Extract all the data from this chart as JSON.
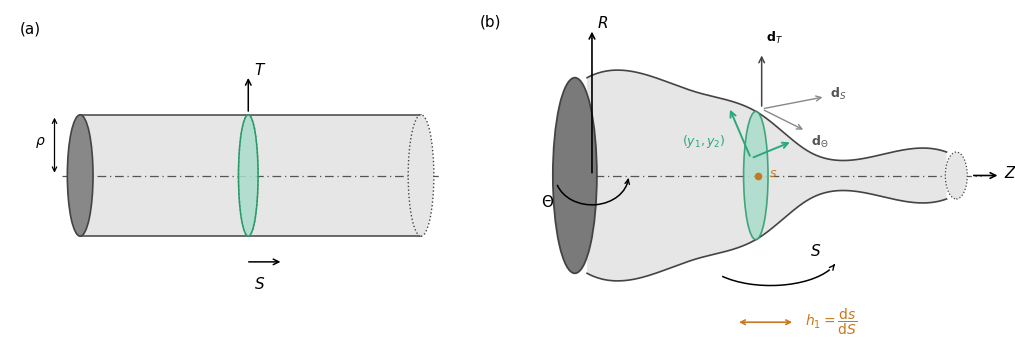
{
  "fig_width": 10.15,
  "fig_height": 3.51,
  "dpi": 100,
  "bg_color": "#ffffff",
  "gray_dark": "#444444",
  "gray_body": "#e6e6e6",
  "gray_face": "#888888",
  "gray_face2": "#7a7a7a",
  "green_light": "#aaddcc",
  "green_edge": "#2a9a6a",
  "teal_arrow": "#2aa87e",
  "orange_color": "#c87820",
  "dash_color": "#555555",
  "label_a": "(a)",
  "label_b": "(b)"
}
